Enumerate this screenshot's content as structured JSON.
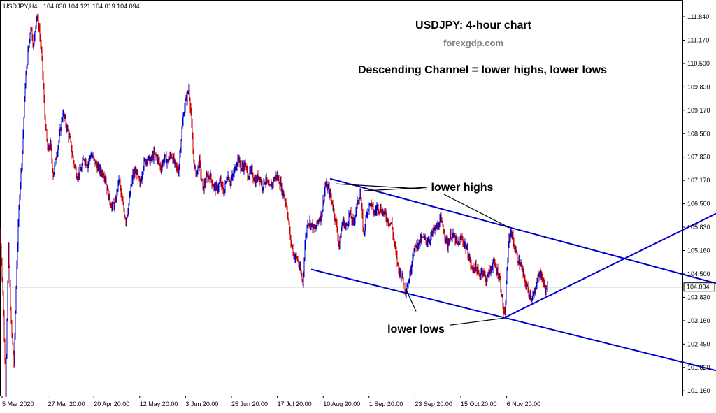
{
  "header": {
    "symbol": "USDJPY,H4",
    "ohlc": "104.030 104.121 104.019 104.094"
  },
  "chart_data": {
    "type": "candlestick",
    "symbol": "USDJPY",
    "timeframe": "H4",
    "title": "USDJPY: 4-hour chart",
    "subtitle": "forexgdp.com",
    "headline": "Descending Channel = lower highs, lower lows",
    "current_price": 104.094,
    "current_price_label": "104.094",
    "ylim": [
      100.8,
      112.0
    ],
    "y_ticks": [
      "111.840",
      "111.170",
      "110.500",
      "109.830",
      "109.170",
      "108.500",
      "107.830",
      "107.170",
      "106.500",
      "105.830",
      "105.160",
      "104.500",
      "103.830",
      "103.160",
      "102.490",
      "101.820",
      "101.160"
    ],
    "x_ticks": [
      "5 Mar 2020",
      "27 Mar 20:00",
      "20 Apr 20:00",
      "12 May 20:00",
      "3 Jun 20:00",
      "25 Jun 20:00",
      "17 Jul 20:00",
      "10 Aug 20:00",
      "1 Sep 20:00",
      "23 Sep 20:00",
      "15 Oct 20:00",
      "6 Nov 20:00"
    ],
    "colors": {
      "up": "#0000cd",
      "down": "#cc0000",
      "channel": "#0000cd",
      "pointer": "#000000",
      "price_line": "#a0a0a0"
    },
    "price_path": [
      [
        0,
        105.7
      ],
      [
        4,
        104.0
      ],
      [
        8,
        101.2
      ],
      [
        12,
        105.2
      ],
      [
        16,
        103.0
      ],
      [
        20,
        101.9
      ],
      [
        24,
        104.8
      ],
      [
        28,
        106.8
      ],
      [
        32,
        108.0
      ],
      [
        36,
        109.9
      ],
      [
        40,
        110.8
      ],
      [
        44,
        111.6
      ],
      [
        48,
        111.0
      ],
      [
        52,
        111.9
      ],
      [
        56,
        111.5
      ],
      [
        60,
        110.6
      ],
      [
        64,
        109.0
      ],
      [
        68,
        108.0
      ],
      [
        72,
        108.2
      ],
      [
        76,
        107.3
      ],
      [
        80,
        107.8
      ],
      [
        85,
        108.4
      ],
      [
        90,
        109.1
      ],
      [
        95,
        108.7
      ],
      [
        100,
        108.3
      ],
      [
        105,
        107.7
      ],
      [
        110,
        107.3
      ],
      [
        115,
        107.4
      ],
      [
        120,
        107.8
      ],
      [
        125,
        107.6
      ],
      [
        130,
        107.9
      ],
      [
        135,
        107.7
      ],
      [
        140,
        107.5
      ],
      [
        145,
        107.4
      ],
      [
        150,
        107.3
      ],
      [
        155,
        106.7
      ],
      [
        160,
        106.4
      ],
      [
        165,
        106.5
      ],
      [
        170,
        107.2
      ],
      [
        175,
        106.5
      ],
      [
        180,
        106.0
      ],
      [
        185,
        106.6
      ],
      [
        190,
        107.3
      ],
      [
        195,
        107.4
      ],
      [
        200,
        107.0
      ],
      [
        205,
        107.6
      ],
      [
        210,
        107.8
      ],
      [
        215,
        107.7
      ],
      [
        220,
        107.9
      ],
      [
        225,
        107.8
      ],
      [
        230,
        107.5
      ],
      [
        235,
        107.8
      ],
      [
        240,
        107.7
      ],
      [
        245,
        107.9
      ],
      [
        250,
        107.6
      ],
      [
        255,
        107.4
      ],
      [
        260,
        108.6
      ],
      [
        264,
        109.3
      ],
      [
        268,
        109.6
      ],
      [
        270,
        109.8
      ],
      [
        273,
        109.1
      ],
      [
        276,
        107.9
      ],
      [
        280,
        107.3
      ],
      [
        285,
        107.7
      ],
      [
        290,
        106.9
      ],
      [
        295,
        107.2
      ],
      [
        300,
        107.3
      ],
      [
        305,
        107.0
      ],
      [
        310,
        106.9
      ],
      [
        315,
        107.1
      ],
      [
        320,
        106.8
      ],
      [
        325,
        107.3
      ],
      [
        330,
        107.1
      ],
      [
        335,
        107.4
      ],
      [
        340,
        107.8
      ],
      [
        345,
        107.5
      ],
      [
        350,
        107.6
      ],
      [
        355,
        107.3
      ],
      [
        360,
        107.4
      ],
      [
        365,
        107.1
      ],
      [
        370,
        107.3
      ],
      [
        375,
        107.0
      ],
      [
        380,
        107.2
      ],
      [
        385,
        106.9
      ],
      [
        390,
        107.1
      ],
      [
        395,
        107.3
      ],
      [
        400,
        107.1
      ],
      [
        405,
        106.8
      ],
      [
        410,
        106.4
      ],
      [
        415,
        105.5
      ],
      [
        420,
        105.0
      ],
      [
        425,
        104.9
      ],
      [
        430,
        104.5
      ],
      [
        433,
        104.2
      ],
      [
        436,
        105.3
      ],
      [
        440,
        106.0
      ],
      [
        445,
        105.9
      ],
      [
        450,
        105.7
      ],
      [
        455,
        106.0
      ],
      [
        460,
        106.2
      ],
      [
        465,
        107.0
      ],
      [
        470,
        106.9
      ],
      [
        475,
        106.5
      ],
      [
        480,
        106.0
      ],
      [
        485,
        105.3
      ],
      [
        490,
        106.0
      ],
      [
        495,
        105.8
      ],
      [
        500,
        106.2
      ],
      [
        505,
        105.9
      ],
      [
        510,
        106.4
      ],
      [
        515,
        106.8
      ],
      [
        520,
        105.6
      ],
      [
        525,
        106.3
      ],
      [
        530,
        106.5
      ],
      [
        535,
        106.2
      ],
      [
        540,
        106.4
      ],
      [
        545,
        106.3
      ],
      [
        550,
        106.2
      ],
      [
        555,
        106.0
      ],
      [
        560,
        105.9
      ],
      [
        565,
        105.2
      ],
      [
        570,
        104.6
      ],
      [
        575,
        104.4
      ],
      [
        580,
        104.0
      ],
      [
        585,
        104.3
      ],
      [
        590,
        105.0
      ],
      [
        595,
        105.3
      ],
      [
        600,
        105.4
      ],
      [
        605,
        105.5
      ],
      [
        610,
        105.4
      ],
      [
        615,
        105.5
      ],
      [
        620,
        105.7
      ],
      [
        625,
        105.8
      ],
      [
        630,
        106.0
      ],
      [
        635,
        105.7
      ],
      [
        640,
        105.3
      ],
      [
        645,
        105.6
      ],
      [
        650,
        105.5
      ],
      [
        655,
        105.3
      ],
      [
        660,
        105.5
      ],
      [
        665,
        105.3
      ],
      [
        670,
        105.0
      ],
      [
        675,
        104.6
      ],
      [
        680,
        104.7
      ],
      [
        685,
        104.4
      ],
      [
        690,
        104.6
      ],
      [
        695,
        104.3
      ],
      [
        700,
        104.5
      ],
      [
        705,
        104.8
      ],
      [
        710,
        104.6
      ],
      [
        715,
        104.3
      ],
      [
        720,
        103.4
      ],
      [
        722,
        103.2
      ],
      [
        725,
        104.6
      ],
      [
        728,
        105.5
      ],
      [
        731,
        105.7
      ],
      [
        735,
        105.3
      ],
      [
        740,
        104.9
      ],
      [
        745,
        104.7
      ],
      [
        750,
        104.3
      ],
      [
        755,
        104.0
      ],
      [
        760,
        103.8
      ],
      [
        765,
        103.9
      ],
      [
        770,
        104.5
      ],
      [
        775,
        104.4
      ],
      [
        780,
        104.0
      ],
      [
        783,
        104.1
      ]
    ],
    "annotations": [
      {
        "text": "lower highs"
      },
      {
        "text": "lower lows"
      }
    ],
    "channel": {
      "upper": [
        [
          472,
          107.2
        ],
        [
          1024,
          104.2
        ]
      ],
      "lower": [
        [
          445,
          104.6
        ],
        [
          1024,
          101.7
        ]
      ],
      "support": [
        [
          720,
          103.2
        ],
        [
          1024,
          106.2
        ]
      ]
    },
    "pointers": [
      [
        [
          480,
          107.05
        ],
        [
          610,
          106.9
        ]
      ],
      [
        [
          520,
          106.85
        ],
        [
          610,
          106.95
        ]
      ],
      [
        [
          635,
          106.75
        ],
        [
          728,
          105.8
        ]
      ],
      [
        [
          580,
          104.05
        ],
        [
          595,
          103.4
        ]
      ],
      [
        [
          643,
          103.0
        ],
        [
          720,
          103.2
        ]
      ]
    ]
  }
}
